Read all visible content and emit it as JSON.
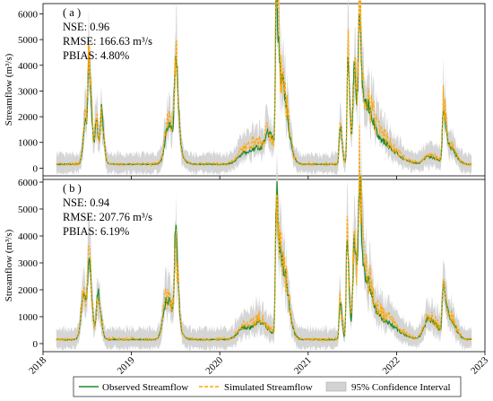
{
  "chart_data": [
    {
      "type": "line",
      "panel_label": "( a )",
      "stats": [
        "NSE: 0.96",
        "RMSE: 166.63 m³/s",
        "PBIAS: 4.80%"
      ],
      "ylabel": "Streamflow (m³/s)",
      "ylim": [
        -300,
        6400
      ],
      "yticks": [
        0,
        1000,
        2000,
        3000,
        4000,
        5000,
        6000
      ],
      "ytick_labels": [
        "0",
        "1000",
        "2000",
        "3000",
        "4000",
        "5000",
        "6000"
      ],
      "xlim": [
        2018.0,
        2023.0
      ],
      "show_x_tick_labels": false,
      "peaks": [
        {
          "t": 2018.48,
          "obs": 1750,
          "sim": 1900,
          "w": 0.025
        },
        {
          "t": 2018.52,
          "obs": 2700,
          "sim": 3100,
          "w": 0.012
        },
        {
          "t": 2018.6,
          "obs": 1800,
          "sim": 1900,
          "w": 0.012
        },
        {
          "t": 2018.66,
          "obs": 2100,
          "sim": 2200,
          "w": 0.012
        },
        {
          "t": 2019.42,
          "obs": 1700,
          "sim": 1850,
          "w": 0.04
        },
        {
          "t": 2019.5,
          "obs": 3450,
          "sim": 3550,
          "w": 0.013
        },
        {
          "t": 2020.28,
          "obs": 600,
          "sim": 750,
          "w": 0.07
        },
        {
          "t": 2020.42,
          "obs": 500,
          "sim": 650,
          "w": 0.05
        },
        {
          "t": 2020.55,
          "obs": 1100,
          "sim": 1000,
          "w": 0.04
        },
        {
          "t": 2020.64,
          "obs": 5600,
          "sim": 6200,
          "w": 0.01
        },
        {
          "t": 2020.7,
          "obs": 3100,
          "sim": 3300,
          "w": 0.03
        },
        {
          "t": 2021.36,
          "obs": 1700,
          "sim": 1700,
          "w": 0.01
        },
        {
          "t": 2021.45,
          "obs": 4100,
          "sim": 4600,
          "w": 0.01
        },
        {
          "t": 2021.52,
          "obs": 3700,
          "sim": 3900,
          "w": 0.015
        },
        {
          "t": 2021.58,
          "obs": 5300,
          "sim": 5700,
          "w": 0.012
        },
        {
          "t": 2021.65,
          "obs": 2200,
          "sim": 2300,
          "w": 0.03
        },
        {
          "t": 2021.78,
          "obs": 1100,
          "sim": 1300,
          "w": 0.08
        },
        {
          "t": 2022.36,
          "obs": 450,
          "sim": 500,
          "w": 0.05
        },
        {
          "t": 2022.53,
          "obs": 2200,
          "sim": 2500,
          "w": 0.012
        },
        {
          "t": 2022.6,
          "obs": 800,
          "sim": 900,
          "w": 0.03
        }
      ]
    },
    {
      "type": "line",
      "panel_label": "( b )",
      "stats": [
        "NSE: 0.94",
        "RMSE: 207.76 m³/s",
        "PBIAS: 6.19%"
      ],
      "ylabel": "Streamflow (m³/s)",
      "ylim": [
        -300,
        6100
      ],
      "yticks": [
        0,
        1000,
        2000,
        3000,
        4000,
        5000,
        6000
      ],
      "ytick_labels": [
        "0",
        "1000",
        "2000",
        "3000",
        "4000",
        "5000",
        "6000"
      ],
      "xlim": [
        2018.0,
        2023.0
      ],
      "show_x_tick_labels": true,
      "xticks": [
        2018,
        2019,
        2020,
        2021,
        2022,
        2023
      ],
      "xtick_labels": [
        "2018",
        "2019",
        "2020",
        "2021",
        "2022",
        "2023"
      ],
      "peaks": [
        {
          "t": 2018.46,
          "obs": 1700,
          "sim": 1800,
          "w": 0.03
        },
        {
          "t": 2018.52,
          "obs": 2500,
          "sim": 2200,
          "w": 0.012
        },
        {
          "t": 2018.62,
          "obs": 1800,
          "sim": 1700,
          "w": 0.015
        },
        {
          "t": 2019.4,
          "obs": 1600,
          "sim": 1700,
          "w": 0.04
        },
        {
          "t": 2019.5,
          "obs": 3550,
          "sim": 3100,
          "w": 0.012
        },
        {
          "t": 2020.28,
          "obs": 600,
          "sim": 700,
          "w": 0.07
        },
        {
          "t": 2020.45,
          "obs": 600,
          "sim": 650,
          "w": 0.05
        },
        {
          "t": 2020.64,
          "obs": 5000,
          "sim": 4700,
          "w": 0.01
        },
        {
          "t": 2020.7,
          "obs": 3100,
          "sim": 3200,
          "w": 0.03
        },
        {
          "t": 2021.36,
          "obs": 1600,
          "sim": 1650,
          "w": 0.01
        },
        {
          "t": 2021.44,
          "obs": 4050,
          "sim": 3900,
          "w": 0.01
        },
        {
          "t": 2021.52,
          "obs": 3700,
          "sim": 3800,
          "w": 0.015
        },
        {
          "t": 2021.58,
          "obs": 5400,
          "sim": 5600,
          "w": 0.012
        },
        {
          "t": 2021.65,
          "obs": 2300,
          "sim": 2400,
          "w": 0.03
        },
        {
          "t": 2021.8,
          "obs": 900,
          "sim": 1100,
          "w": 0.08
        },
        {
          "t": 2022.36,
          "obs": 900,
          "sim": 1000,
          "w": 0.05
        },
        {
          "t": 2022.53,
          "obs": 2200,
          "sim": 2100,
          "w": 0.012
        },
        {
          "t": 2022.6,
          "obs": 900,
          "sim": 1000,
          "w": 0.03
        }
      ]
    }
  ],
  "legend": {
    "observed": "Observed Streamflow",
    "simulated": "Simulated Streamflow",
    "ci": "95% Confidence Interval"
  },
  "colors": {
    "observed": "#1a8a2a",
    "simulated": "#ffa500",
    "ci": "#d3d3d3"
  }
}
